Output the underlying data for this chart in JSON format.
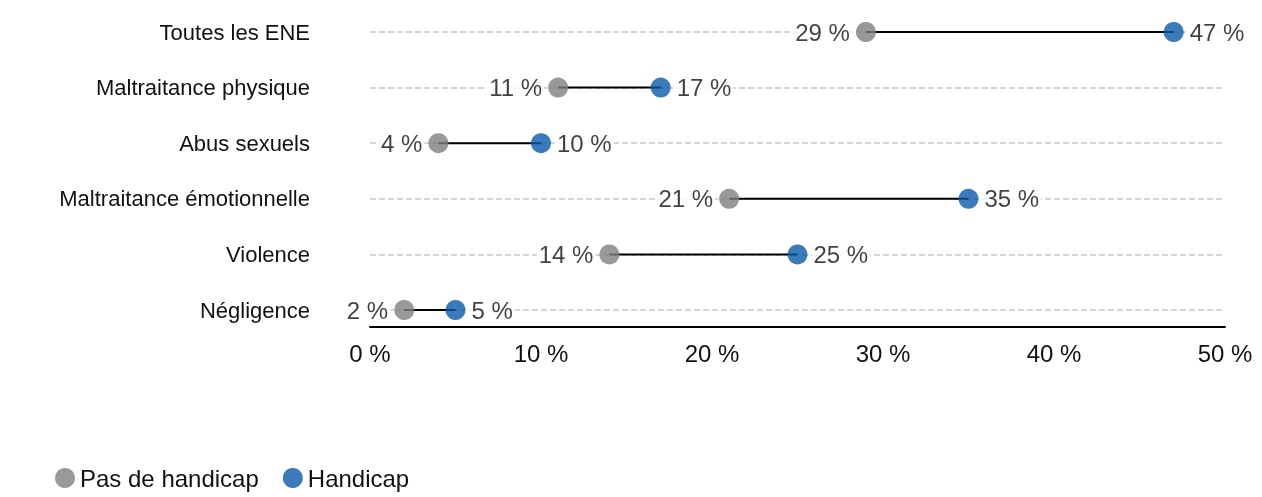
{
  "chart_data": {
    "type": "scatter",
    "orientation": "horizontal",
    "categories": [
      "Toutes les ENE",
      "Maltraitance physique",
      "Abus sexuels",
      "Maltraitance émotionnelle",
      "Violence",
      "Négligence"
    ],
    "series": [
      {
        "name": "Pas de handicap",
        "color": "#808080",
        "values": [
          29,
          11,
          4,
          21,
          14,
          2
        ],
        "value_labels": [
          "29 %",
          "11 %",
          "4 %",
          "21 %",
          "14 %",
          "2 %"
        ]
      },
      {
        "name": "Handicap",
        "color": "#0a5aa8",
        "values": [
          47,
          17,
          10,
          35,
          25,
          5
        ],
        "value_labels": [
          "47 %",
          "17 %",
          "10 %",
          "35 %",
          "25 %",
          "5 %"
        ]
      }
    ],
    "xlim": [
      0,
      50
    ],
    "xticks": [
      {
        "value": 0,
        "label": "0 %"
      },
      {
        "value": 10,
        "label": "10 %"
      },
      {
        "value": 20,
        "label": "20 %"
      },
      {
        "value": 30,
        "label": "30 %"
      },
      {
        "value": 40,
        "label": "40 %"
      },
      {
        "value": 50,
        "label": "50 %"
      }
    ],
    "grid": "y",
    "legend": "bottom left",
    "marker": "circle"
  }
}
